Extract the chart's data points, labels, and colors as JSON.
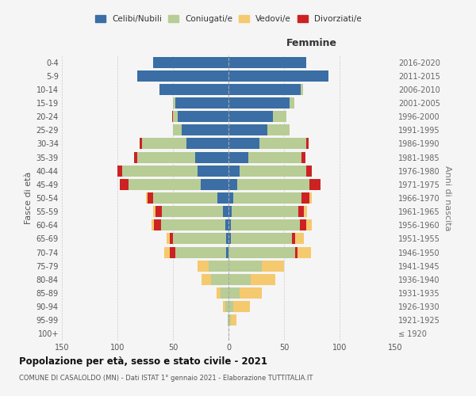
{
  "age_groups": [
    "100+",
    "95-99",
    "90-94",
    "85-89",
    "80-84",
    "75-79",
    "70-74",
    "65-69",
    "60-64",
    "55-59",
    "50-54",
    "45-49",
    "40-44",
    "35-39",
    "30-34",
    "25-29",
    "20-24",
    "15-19",
    "10-14",
    "5-9",
    "0-4"
  ],
  "birth_years": [
    "≤ 1920",
    "1921-1925",
    "1926-1930",
    "1931-1935",
    "1936-1940",
    "1941-1945",
    "1946-1950",
    "1951-1955",
    "1956-1960",
    "1961-1965",
    "1966-1970",
    "1971-1975",
    "1976-1980",
    "1981-1985",
    "1986-1990",
    "1991-1995",
    "1996-2000",
    "2001-2005",
    "2006-2010",
    "2011-2015",
    "2016-2020"
  ],
  "male": {
    "celibi": [
      0,
      0,
      0,
      0,
      0,
      0,
      2,
      2,
      3,
      5,
      10,
      25,
      28,
      30,
      38,
      42,
      46,
      48,
      62,
      82,
      68
    ],
    "coniugati": [
      0,
      1,
      3,
      7,
      16,
      18,
      46,
      48,
      58,
      55,
      58,
      65,
      68,
      52,
      40,
      8,
      4,
      2,
      0,
      0,
      0
    ],
    "vedovi": [
      0,
      0,
      2,
      4,
      8,
      10,
      5,
      3,
      2,
      2,
      1,
      0,
      0,
      0,
      0,
      0,
      0,
      0,
      0,
      0,
      0
    ],
    "divorziati": [
      0,
      0,
      0,
      0,
      0,
      0,
      5,
      3,
      6,
      6,
      5,
      8,
      4,
      3,
      2,
      0,
      1,
      0,
      0,
      0,
      0
    ]
  },
  "female": {
    "nubili": [
      0,
      0,
      0,
      0,
      0,
      0,
      0,
      2,
      2,
      3,
      4,
      8,
      10,
      18,
      28,
      35,
      40,
      55,
      65,
      90,
      70
    ],
    "coniugate": [
      0,
      2,
      4,
      10,
      20,
      30,
      60,
      55,
      62,
      60,
      62,
      65,
      60,
      48,
      42,
      20,
      12,
      4,
      2,
      0,
      0
    ],
    "vedove": [
      0,
      5,
      15,
      20,
      22,
      20,
      12,
      8,
      5,
      3,
      2,
      0,
      0,
      0,
      0,
      0,
      0,
      0,
      0,
      0,
      0
    ],
    "divorziate": [
      0,
      0,
      0,
      0,
      0,
      0,
      2,
      3,
      6,
      5,
      7,
      10,
      5,
      3,
      2,
      0,
      0,
      0,
      0,
      0,
      0
    ]
  },
  "colors": {
    "celibi_nubili": "#3a6ea5",
    "coniugati": "#b8cc96",
    "vedovi": "#f5c96e",
    "divorziati": "#cc2222"
  },
  "title": "Popolazione per età, sesso e stato civile - 2021",
  "subtitle": "COMUNE DI CASALOLDO (MN) - Dati ISTAT 1° gennaio 2021 - Elaborazione TUTTITALIA.IT",
  "xlim": 150,
  "xlabel_femmine": "Femmine",
  "ylabel_left": "Fasce di età",
  "ylabel_right": "Anni di nascita",
  "legend_labels": [
    "Celibi/Nubili",
    "Coniugati/e",
    "Vedovi/e",
    "Divorziati/e"
  ],
  "bg_color": "#f5f5f5",
  "grid_color": "#cccccc"
}
